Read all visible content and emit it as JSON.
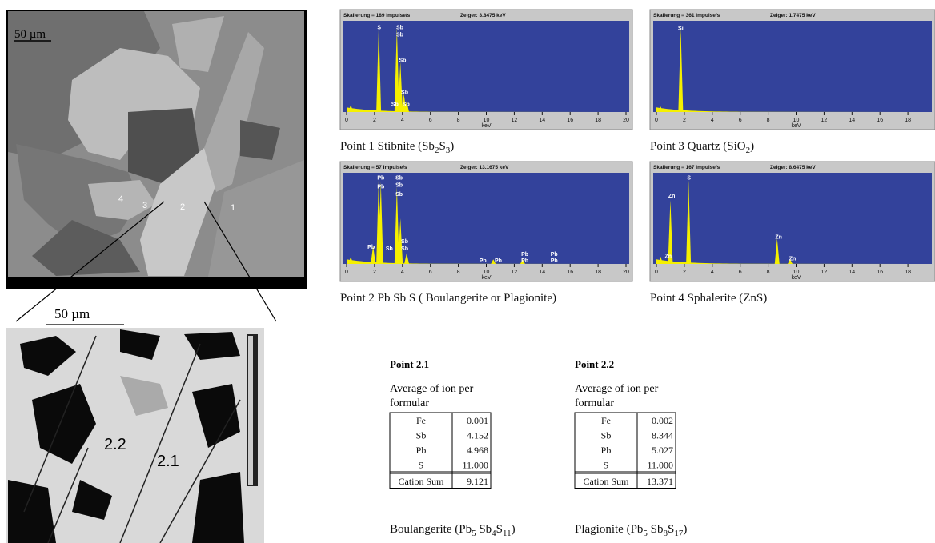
{
  "images": {
    "sem_top": {
      "scale_bar": "50 µm",
      "points": [
        "4",
        "3",
        "2",
        "1"
      ]
    },
    "sem_zoom": {
      "scale_bar": "50 µm",
      "points": [
        "2.2",
        "2.1"
      ]
    }
  },
  "spectra": [
    {
      "scale": "Skalierung = 189 Impulse/s",
      "cursor": "Zeiger: 3.8475 keV",
      "peaks": [
        "S",
        "Sb",
        "Sb",
        "Sb",
        "Sb",
        "Sb",
        "Sb"
      ],
      "xticks": [
        0,
        2,
        4,
        6,
        8,
        10,
        12,
        14,
        16,
        18,
        20
      ],
      "x_unit": "keV",
      "caption": [
        {
          "text": "Point 1 Stibnite (Sb"
        },
        {
          "text": "2",
          "sub": true
        },
        {
          "text": "S"
        },
        {
          "text": "3",
          "sub": true
        },
        {
          "text": ")"
        }
      ]
    },
    {
      "scale": "Skalierung = 57 Impulse/s",
      "cursor": "Zeiger: 13.1675 keV",
      "peaks": [
        "Pb",
        "Pb",
        "Sb",
        "Sb",
        "Sb",
        "Pb",
        "Sb",
        "Sb",
        "Sb",
        "Pb",
        "Pb",
        "Pb",
        "Pb",
        "Pb",
        "Pb"
      ],
      "xticks": [
        0,
        2,
        4,
        6,
        8,
        10,
        12,
        14,
        16,
        18,
        20
      ],
      "x_unit": "keV",
      "caption": [
        {
          "text": "Point 2  Pb Sb S ( Boulangerite or Plagionite)"
        }
      ]
    },
    {
      "scale": "Skalierung = 361 Impulse/s",
      "cursor": "Zeiger: 1.7475 keV",
      "peaks": [
        "Si"
      ],
      "xticks": [
        0,
        2,
        4,
        6,
        8,
        10,
        12,
        14,
        16,
        18
      ],
      "x_unit": "keV",
      "caption": [
        {
          "text": "Point 3 Quartz (SiO"
        },
        {
          "text": "2",
          "sub": true
        },
        {
          "text": ")"
        }
      ]
    },
    {
      "scale": "Skalierung = 167 Impulse/s",
      "cursor": "Zeiger: 8.6475 keV",
      "peaks": [
        "Zn",
        "S",
        "Zn",
        "Zn",
        "Zn"
      ],
      "xticks": [
        0,
        2,
        4,
        6,
        8,
        10,
        12,
        14,
        16,
        18
      ],
      "x_unit": "keV",
      "caption": [
        {
          "text": "Point 4 Sphalerite (ZnS)"
        }
      ]
    }
  ],
  "tables": [
    {
      "title": "Point 2.1",
      "subtitle": [
        "Average of ion per",
        "formular"
      ],
      "rows": [
        [
          "Fe",
          "0.001"
        ],
        [
          "Sb",
          "4.152"
        ],
        [
          "Pb",
          "4.968"
        ],
        [
          "S",
          "11.000"
        ]
      ],
      "total": [
        "Cation Sum",
        "9.121"
      ],
      "caption": [
        {
          "text": "Boulangerite (Pb"
        },
        {
          "text": "5",
          "sub": true
        },
        {
          "text": " Sb"
        },
        {
          "text": "4",
          "sub": true
        },
        {
          "text": "S"
        },
        {
          "text": "11",
          "sub": true
        },
        {
          "text": ")"
        }
      ]
    },
    {
      "title": "Point 2.2",
      "subtitle": [
        "Average of ion per",
        "formular"
      ],
      "rows": [
        [
          "Fe",
          "0.002"
        ],
        [
          "Sb",
          "8.344"
        ],
        [
          "Pb",
          "5.027"
        ],
        [
          "S",
          "11.000"
        ]
      ],
      "total": [
        "Cation Sum",
        "13.371"
      ],
      "caption": [
        {
          "text": "Plagionite (Pb"
        },
        {
          "text": "5",
          "sub": true
        },
        {
          "text": " Sb"
        },
        {
          "text": "8",
          "sub": true
        },
        {
          "text": "S"
        },
        {
          "text": "17",
          "sub": true
        },
        {
          "text": ")"
        }
      ]
    }
  ]
}
